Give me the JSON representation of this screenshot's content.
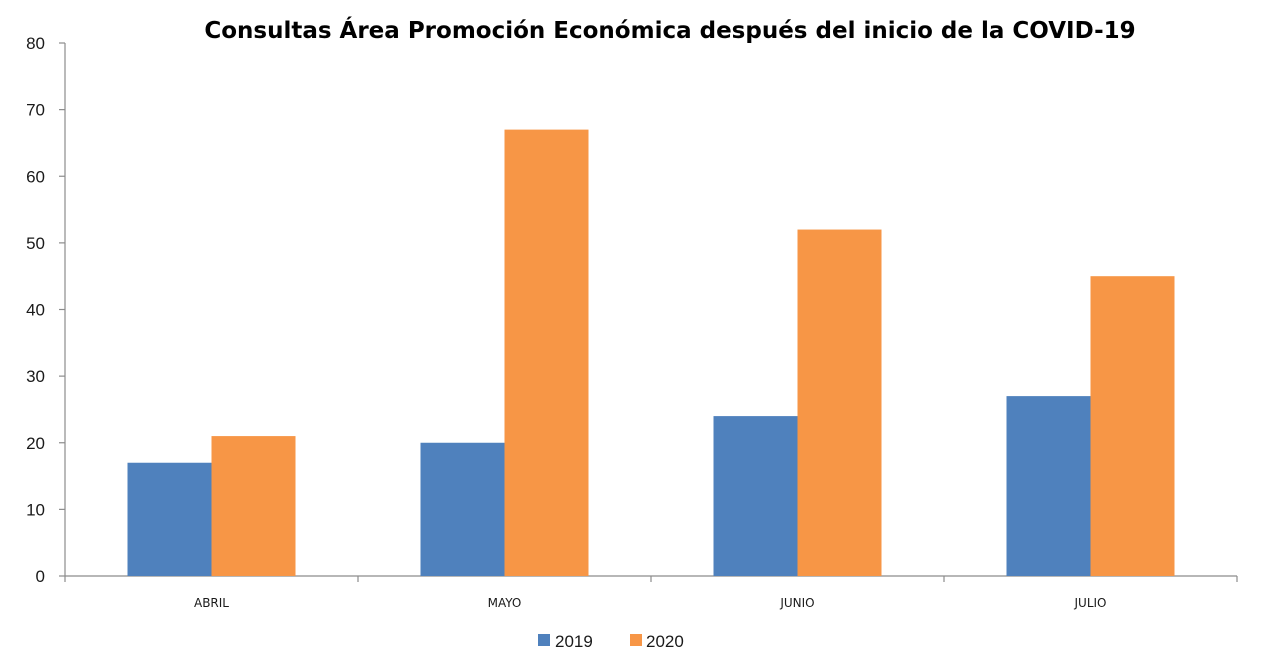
{
  "chart_data": {
    "type": "bar",
    "title": "Consultas Área Promoción Económica después del inicio de la COVID-19",
    "xlabel": "",
    "ylabel": "",
    "categories": [
      "ABRIL",
      "MAYO",
      "JUNIO",
      "JULIO"
    ],
    "series": [
      {
        "name": "2019",
        "values": [
          17,
          20,
          24,
          27
        ],
        "color": "#4f81bd"
      },
      {
        "name": "2020",
        "values": [
          21,
          67,
          52,
          45
        ],
        "color": "#f79646"
      }
    ],
    "ylim": [
      0,
      80
    ],
    "yticks": [
      0,
      10,
      20,
      30,
      40,
      50,
      60,
      70,
      80
    ],
    "grid": false,
    "legend_position": "bottom"
  }
}
